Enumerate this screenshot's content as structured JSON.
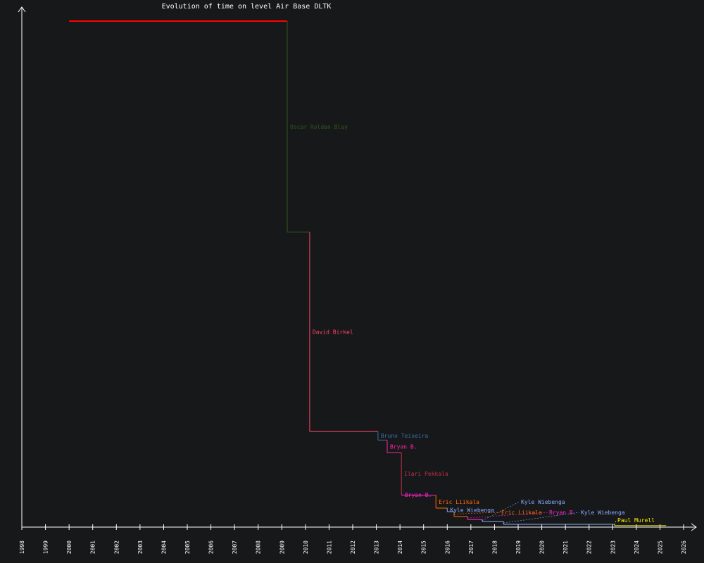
{
  "chart_data": {
    "type": "line",
    "title": "Evolution of time on level Air Base DLTK",
    "xlabel": "",
    "ylabel": "",
    "xlim": [
      1998,
      2026
    ],
    "ylim": [
      0,
      100
    ],
    "grid": false,
    "x_ticks": [
      "1998",
      "1999",
      "2000",
      "2001",
      "2002",
      "2003",
      "2004",
      "2005",
      "2006",
      "2007",
      "2008",
      "2009",
      "2010",
      "2011",
      "2012",
      "2013",
      "2014",
      "2015",
      "2016",
      "2017",
      "2018",
      "2019",
      "2020",
      "2021",
      "2022",
      "2023",
      "2024",
      "2025",
      "2026"
    ],
    "axis_color": "#ffffff",
    "records": [
      {
        "holder": "",
        "start": 2000.0,
        "value": 100,
        "color": "#ff0000"
      },
      {
        "holder": "Oscar Roldan Blay",
        "start": 2009.23,
        "value": 58.3,
        "color": "#2f5a1a"
      },
      {
        "holder": "David Birkel",
        "start": 2010.18,
        "value": 18.9,
        "color": "#ff4466"
      },
      {
        "holder": "Bruno Teixeira",
        "start": 2013.07,
        "value": 17.2,
        "color": "#3a6ea5"
      },
      {
        "holder": "Bryan B.",
        "start": 2013.46,
        "value": 14.7,
        "color": "#ff22aa"
      },
      {
        "holder": "Ilari Pekkala",
        "start": 2014.06,
        "value": 6.5,
        "color": "#c0304a"
      },
      {
        "holder": "Bryan B.",
        "start": 2014.08,
        "value": 6.3,
        "color": "#ff22cc"
      },
      {
        "holder": "Eric Liikala",
        "start": 2015.52,
        "value": 3.75,
        "color": "#ff6a00"
      },
      {
        "holder": "Kyle Wiebenga",
        "start": 2016.0,
        "value": 3.05,
        "color": "#88aaff"
      },
      {
        "holder": "Eric Liikala",
        "start": 2016.29,
        "value": 2.1,
        "color": "#ff6a00"
      },
      {
        "holder": "Bryan B.",
        "start": 2016.86,
        "value": 1.5,
        "color": "#ff22cc"
      },
      {
        "holder": "Kyle Wiebenga",
        "start": 2017.48,
        "value": 1.1,
        "color": "#88aaff"
      },
      {
        "holder": "Kyle Wiebenga",
        "start": 2018.38,
        "value": 0.55,
        "color": "#88aaff"
      },
      {
        "holder": "Paul Murell",
        "start": 2023.08,
        "value": 0.3,
        "color": "#ffee00"
      }
    ],
    "end": 2025.26
  }
}
